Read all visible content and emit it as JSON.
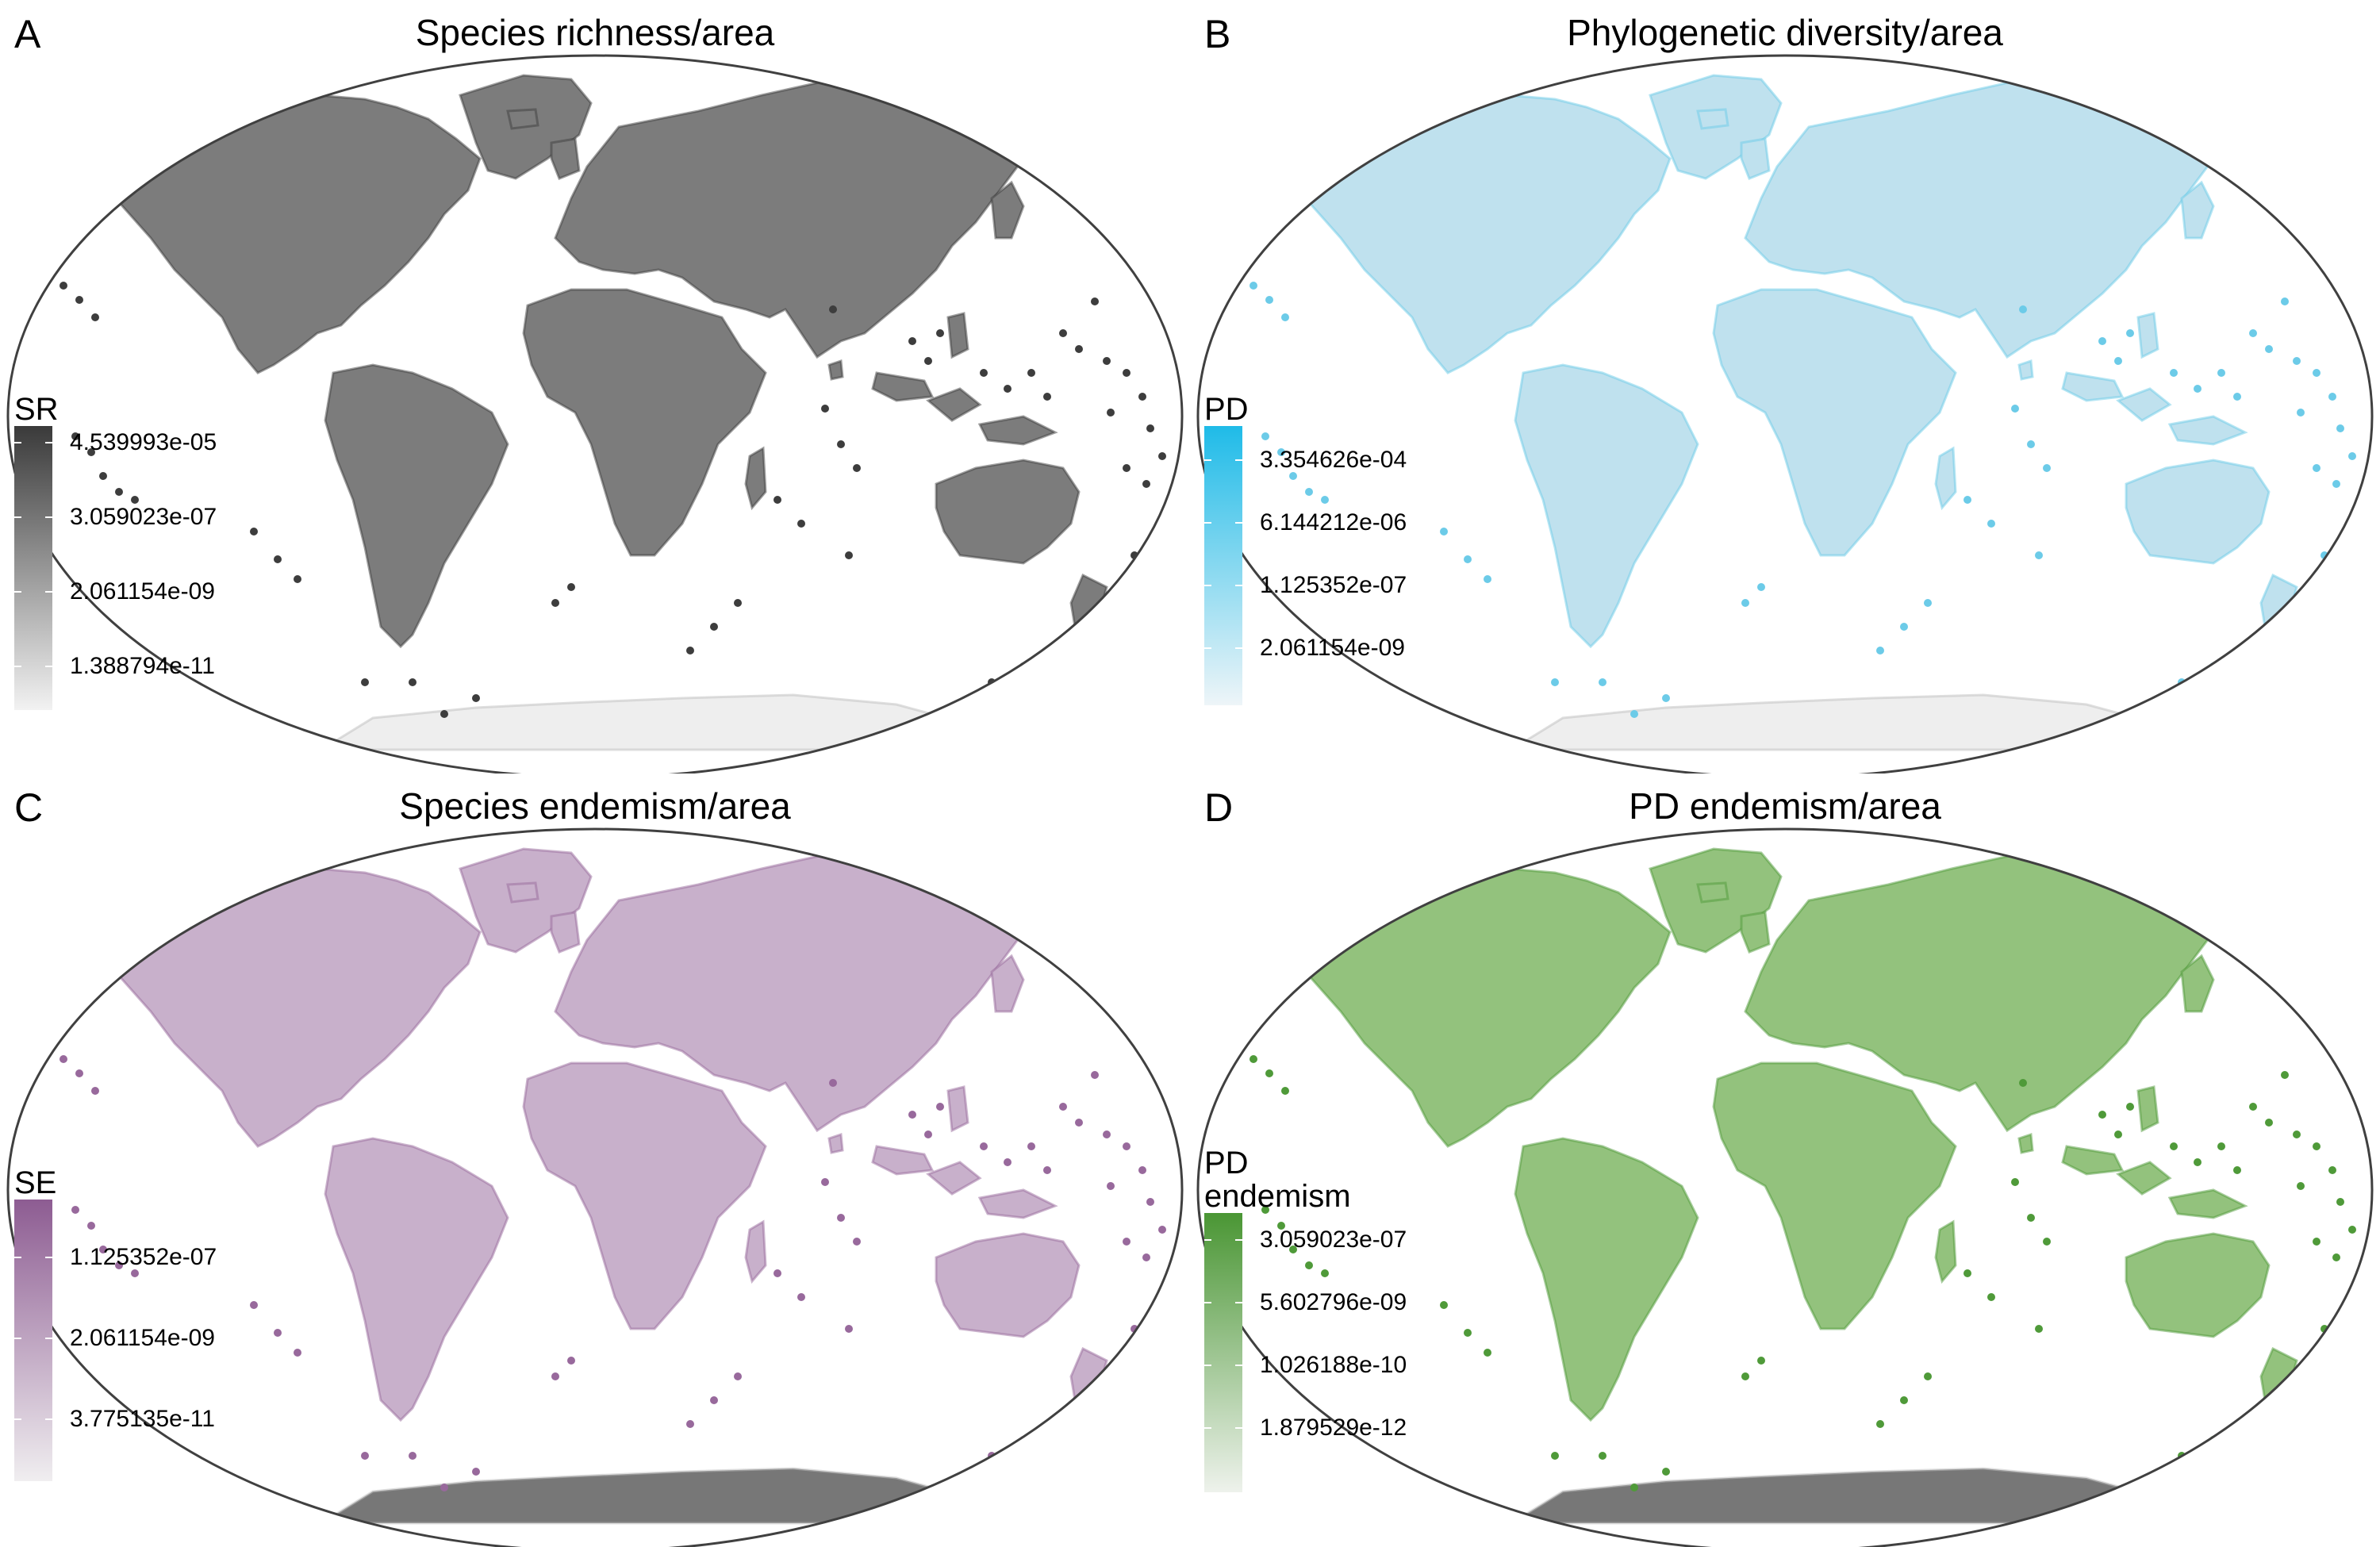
{
  "panels": [
    {
      "letter": "A",
      "title": "Species richness/area",
      "legend_title": "SR",
      "legend_labels": [
        "4.539993e-05",
        "3.059023e-07",
        "2.061154e-09",
        "1.388794e-11"
      ],
      "colors": {
        "high": "#3a3a3a",
        "low": "#f2f2f2",
        "land": "#7c7c7c",
        "islands": "#3d3d3d",
        "antarctica": "#eeeeee"
      }
    },
    {
      "letter": "B",
      "title": "Phylogenetic diversity/area",
      "legend_title": "PD",
      "legend_labels": [
        "3.354626e-04",
        "6.144212e-06",
        "1.125352e-07",
        "2.061154e-09"
      ],
      "colors": {
        "high": "#1fbbe8",
        "low": "#eef5f8",
        "land": "#bfe1ee",
        "islands": "#6ccbe8",
        "antarctica": "#eeeeee"
      }
    },
    {
      "letter": "C",
      "title": "Species endemism/area",
      "legend_title": "SE",
      "legend_labels": [
        "1.125352e-07",
        "2.061154e-09",
        "3.775135e-11"
      ],
      "colors": {
        "high": "#8d5c92",
        "low": "#f0eef0",
        "land": "#c8b0cb",
        "islands": "#98699c",
        "antarctica": "#777777"
      }
    },
    {
      "letter": "D",
      "title": "PD endemism/area",
      "legend_title": "PD\nendemism",
      "legend_labels": [
        "3.059023e-07",
        "5.602796e-09",
        "1.026188e-10",
        "1.879529e-12"
      ],
      "colors": {
        "high": "#4a9634",
        "low": "#eef2ec",
        "land": "#93c27d",
        "islands": "#4f9a39",
        "antarctica": "#777777"
      }
    }
  ]
}
